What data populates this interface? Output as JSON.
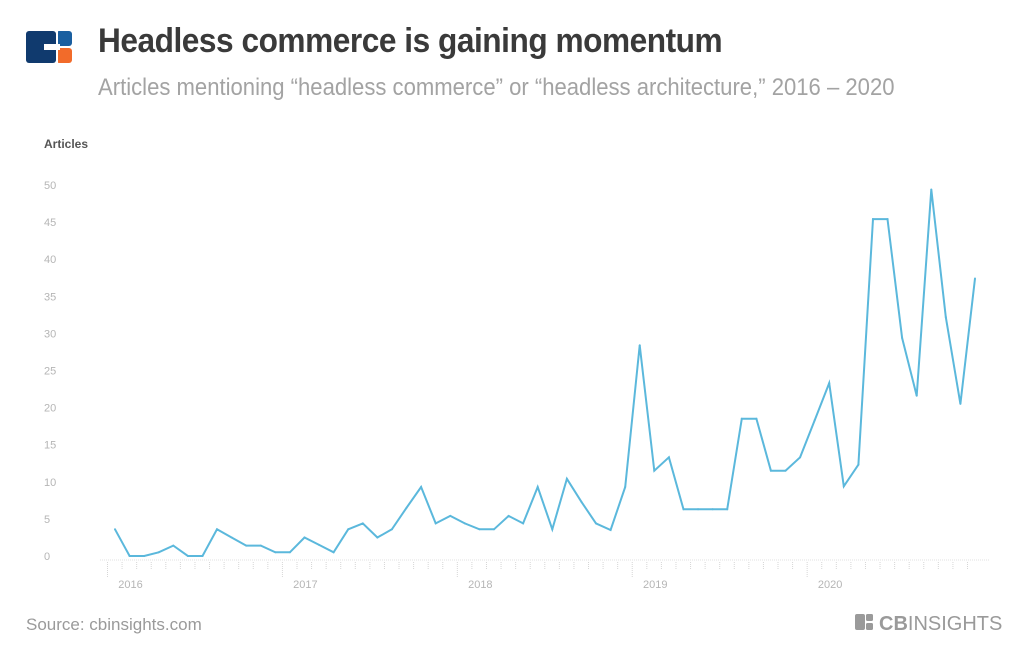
{
  "header": {
    "title": "Headless commerce is gaining momentum",
    "subtitle": "Articles mentioning “headless commerce” or “headless architecture,” 2016 – 2020"
  },
  "footer": {
    "source": "Source: cbinsights.com",
    "brand": "CBINSIGHTS"
  },
  "colors": {
    "line": "#5bb8dc",
    "logo_blue": "#103a6e",
    "logo_orange": "#f26b2a",
    "title": "#3a3a3a"
  },
  "chart_data": {
    "type": "line",
    "title": "Headless commerce is gaining momentum",
    "subtitle": "Articles mentioning “headless commerce” or “headless architecture,” 2016 – 2020",
    "xlabel": "",
    "ylabel": "Articles",
    "ylim": [
      0,
      50
    ],
    "yticks": [
      "0",
      "5",
      "10",
      "15",
      "20",
      "25",
      "30",
      "35",
      "40",
      "45",
      "50"
    ],
    "xticks": [
      "2016",
      "2017",
      "2018",
      "2019",
      "2020"
    ],
    "grid": false,
    "x": [
      "2016-01",
      "2016-02",
      "2016-03",
      "2016-04",
      "2016-05",
      "2016-06",
      "2016-07",
      "2016-08",
      "2016-09",
      "2016-10",
      "2016-11",
      "2016-12",
      "2017-01",
      "2017-02",
      "2017-03",
      "2017-04",
      "2017-05",
      "2017-06",
      "2017-07",
      "2017-08",
      "2017-09",
      "2017-10",
      "2017-11",
      "2017-12",
      "2018-01",
      "2018-02",
      "2018-03",
      "2018-04",
      "2018-05",
      "2018-06",
      "2018-07",
      "2018-08",
      "2018-09",
      "2018-10",
      "2018-11",
      "2018-12",
      "2019-01",
      "2019-02",
      "2019-03",
      "2019-04",
      "2019-05",
      "2019-06",
      "2019-07",
      "2019-08",
      "2019-09",
      "2019-10",
      "2019-11",
      "2019-12",
      "2020-01",
      "2020-02",
      "2020-03",
      "2020-04",
      "2020-05",
      "2020-06",
      "2020-07",
      "2020-08",
      "2020-09",
      "2020-10",
      "2020-11",
      "2020-12"
    ],
    "series": [
      {
        "values": [
          3.6,
          0,
          0,
          0.5,
          1.4,
          0,
          0,
          3.6,
          2.5,
          1.4,
          1.4,
          0.5,
          0.5,
          2.5,
          1.5,
          0.5,
          3.6,
          4.4,
          2.5,
          3.6,
          6.5,
          9.3,
          4.4,
          5.4,
          4.4,
          3.6,
          3.6,
          5.4,
          4.4,
          9.3,
          3.6,
          10.4,
          7.3,
          4.4,
          3.5,
          9.3,
          28.4,
          11.5,
          13.3,
          6.3,
          6.3,
          6.3,
          6.3,
          18.5,
          18.5,
          11.5,
          11.5,
          13.3,
          18.3,
          23.3,
          9.4,
          12.3,
          45.4,
          45.4,
          29.4,
          21.6,
          49.4,
          32.2,
          20.5,
          37.4
        ]
      }
    ]
  }
}
